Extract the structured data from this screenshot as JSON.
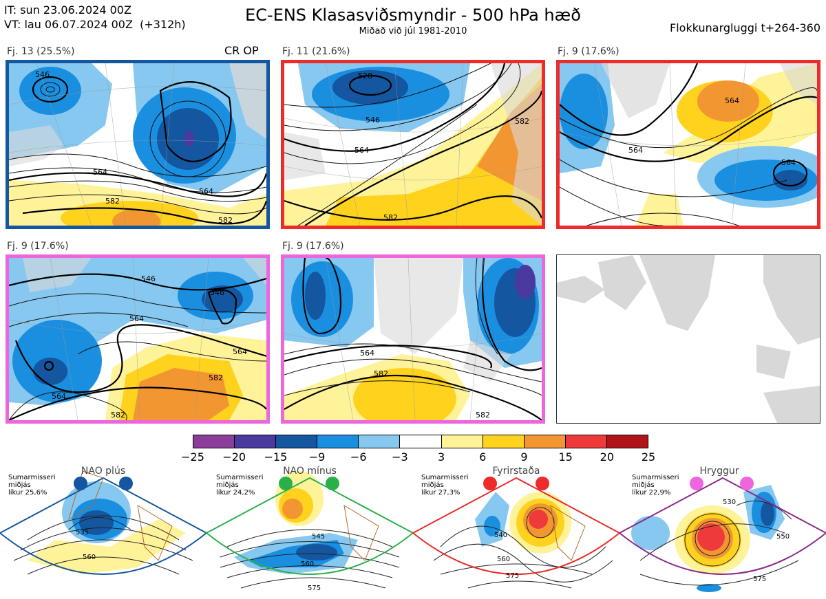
{
  "header": {
    "it_line": "IT: sun 23.06.2024 00Z",
    "vt_line": "VT: lau 06.07.2024 00Z  (+312h)",
    "title": "EC-ENS Klasasviðsmyndir - 500 hPa hæð",
    "subtitle": "Miðað við júl 1981-2010",
    "window": "Flokkunargluggi t+264-360"
  },
  "panels": [
    {
      "label": "Fj. 13 (25.5%)",
      "tag": "CR OP",
      "border": "#1456a0",
      "contours": [
        "546",
        "564",
        "564",
        "582",
        "582"
      ]
    },
    {
      "label": "Fj. 11 (21.6%)",
      "tag": "",
      "border": "#ee2a2a",
      "contours": [
        "528",
        "546",
        "564",
        "582",
        "582"
      ]
    },
    {
      "label": "Fj. 9 (17.6%)",
      "tag": "",
      "border": "#ee2a2a",
      "contours": [
        "564",
        "564",
        "564"
      ]
    },
    {
      "label": "Fj. 9 (17.6%)",
      "tag": "",
      "border": "#ee66dd",
      "contours": [
        "546",
        "546",
        "564",
        "564",
        "582",
        "564",
        "582"
      ]
    },
    {
      "label": "Fj. 9 (17.6%)",
      "tag": "",
      "border": "#ee66dd",
      "contours": [
        "564",
        "582",
        "582"
      ]
    }
  ],
  "colorbar": {
    "ticks": [
      "−25",
      "−20",
      "−15",
      "−9",
      "−6",
      "−3",
      "3",
      "6",
      "9",
      "15",
      "20",
      "25"
    ],
    "colors": [
      "#8a3e9a",
      "#4a3aa0",
      "#1456a0",
      "#1a8fe0",
      "#86c8f0",
      "#ffffff",
      "#fff39a",
      "#ffd21e",
      "#f29632",
      "#ee3a3a",
      "#b0141a"
    ]
  },
  "regimes": [
    {
      "title": "NAO plús",
      "note": [
        "Sumarmisseri",
        "miðjás",
        "líkur 25,6%"
      ],
      "color": "#1456a0",
      "border": "#1456a0",
      "contours": [
        "535",
        "560"
      ]
    },
    {
      "title": "NAO mínus",
      "note": [
        "Sumarmisseri",
        "miðjás",
        "líkur 24,2%"
      ],
      "color": "#2ab04a",
      "border": "#2ab04a",
      "contours": [
        "545",
        "560",
        "575"
      ]
    },
    {
      "title": "Fyrirstaða",
      "note": [
        "Sumarmisseri",
        "miðjás",
        "líkur 27,3%"
      ],
      "color": "#ee2a2a",
      "border": "#ee2a2a",
      "contours": [
        "540",
        "560",
        "575"
      ]
    },
    {
      "title": "Hryggur",
      "note": [
        "Sumarmisseri",
        "miðjás",
        "líkur 22,9%"
      ],
      "color": "#ee66dd",
      "border": "#8a2a8a",
      "contours": [
        "530",
        "550",
        "575"
      ]
    }
  ]
}
